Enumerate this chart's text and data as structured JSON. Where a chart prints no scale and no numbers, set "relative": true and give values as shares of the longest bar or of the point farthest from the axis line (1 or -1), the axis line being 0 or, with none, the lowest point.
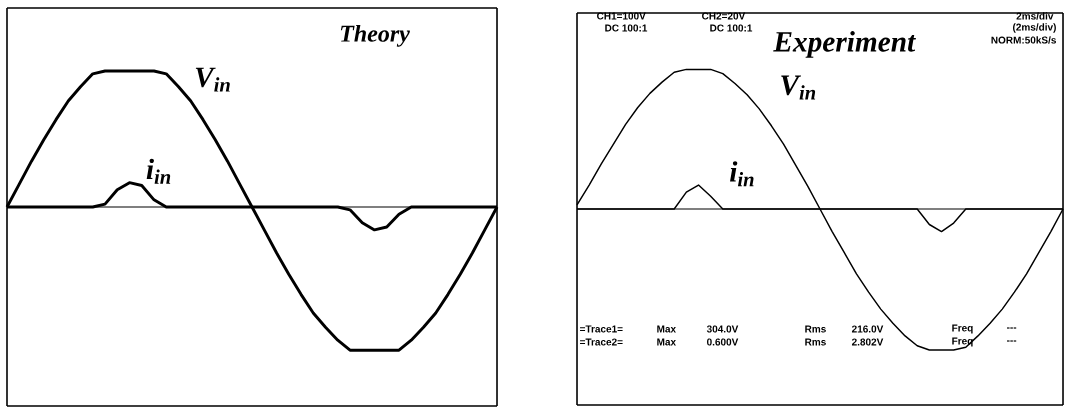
{
  "chart_data": [
    {
      "type": "line",
      "title": "Theory",
      "relative": true,
      "categories": [
        null,
        null,
        null,
        null,
        null,
        null,
        null,
        null,
        null,
        null,
        null,
        null,
        null,
        null,
        null,
        null,
        null,
        null,
        null,
        null,
        null,
        null,
        null,
        null,
        null,
        null,
        null,
        null,
        null,
        null,
        null,
        null,
        null,
        null,
        null,
        null,
        null,
        null,
        null,
        null,
        null
      ],
      "series": [
        {
          "name": "V$_{in}$",
          "color": "#000000",
          "values": [
            0,
            0.16,
            0.32,
            0.47,
            0.61,
            0.74,
            0.84,
            0.93,
            0.95,
            0.95,
            0.95,
            0.95,
            0.95,
            0.93,
            0.84,
            0.74,
            0.61,
            0.47,
            0.32,
            0.16,
            0,
            -0.16,
            -0.32,
            -0.47,
            -0.61,
            -0.74,
            -0.84,
            -0.93,
            -1,
            -1,
            -1,
            -1,
            -1,
            -0.93,
            -0.84,
            -0.74,
            -0.61,
            -0.47,
            -0.32,
            -0.16,
            0
          ]
        },
        {
          "name": "i$_{in}$",
          "color": "#000000",
          "values": [
            0,
            0,
            0,
            0,
            0,
            0,
            0,
            0,
            0.02,
            0.12,
            0.17,
            0.15,
            0.05,
            0,
            0,
            0,
            0,
            0,
            0,
            0,
            0,
            0,
            0,
            0,
            0,
            0,
            0,
            0,
            -0.02,
            -0.11,
            -0.16,
            -0.14,
            -0.05,
            0,
            0,
            0,
            0,
            0,
            0,
            0,
            0
          ]
        }
      ]
    },
    {
      "type": "line",
      "title": "Experiment",
      "relative": true,
      "categories": [
        null,
        null,
        null,
        null,
        null,
        null,
        null,
        null,
        null,
        null,
        null,
        null,
        null,
        null,
        null,
        null,
        null,
        null,
        null,
        null,
        null,
        null,
        null,
        null,
        null,
        null,
        null,
        null,
        null,
        null,
        null,
        null,
        null,
        null,
        null,
        null,
        null,
        null,
        null,
        null,
        null
      ],
      "series": [
        {
          "name": "V$_{in}$",
          "color": "#000000",
          "values": [
            0.03,
            0.17,
            0.32,
            0.46,
            0.6,
            0.72,
            0.82,
            0.9,
            0.97,
            0.99,
            0.99,
            0.99,
            0.96,
            0.89,
            0.81,
            0.71,
            0.59,
            0.46,
            0.31,
            0.16,
            0,
            -0.16,
            -0.31,
            -0.46,
            -0.59,
            -0.71,
            -0.81,
            -0.9,
            -0.97,
            -1,
            -1,
            -1,
            -0.98,
            -0.9,
            -0.81,
            -0.71,
            -0.59,
            -0.46,
            -0.31,
            -0.16,
            0
          ]
        },
        {
          "name": "i$_{in}$",
          "color": "#000000",
          "values": [
            0,
            0,
            0,
            0,
            0,
            0,
            0,
            0,
            0,
            0.12,
            0.17,
            0.09,
            0,
            0,
            0,
            0,
            0,
            0,
            0,
            0,
            0,
            0,
            0,
            0,
            0,
            0,
            0,
            0,
            0,
            -0.11,
            -0.16,
            -0.1,
            0,
            0,
            0,
            0,
            0,
            0,
            0,
            0,
            0
          ]
        }
      ],
      "annotations": [
        "CH1=100V",
        "DC 100:1",
        "CH2=20V",
        "DC 100:1",
        "2ms/div",
        "(2ms/div)",
        "NORM:50kS/s",
        "=Trace1=",
        "Max",
        "304.0V",
        "Rms",
        "216.0V",
        "Freq",
        "---",
        "=Trace2=",
        "Max",
        "0.600V",
        "Rms",
        "2.802V",
        "Freq",
        "---"
      ]
    }
  ]
}
